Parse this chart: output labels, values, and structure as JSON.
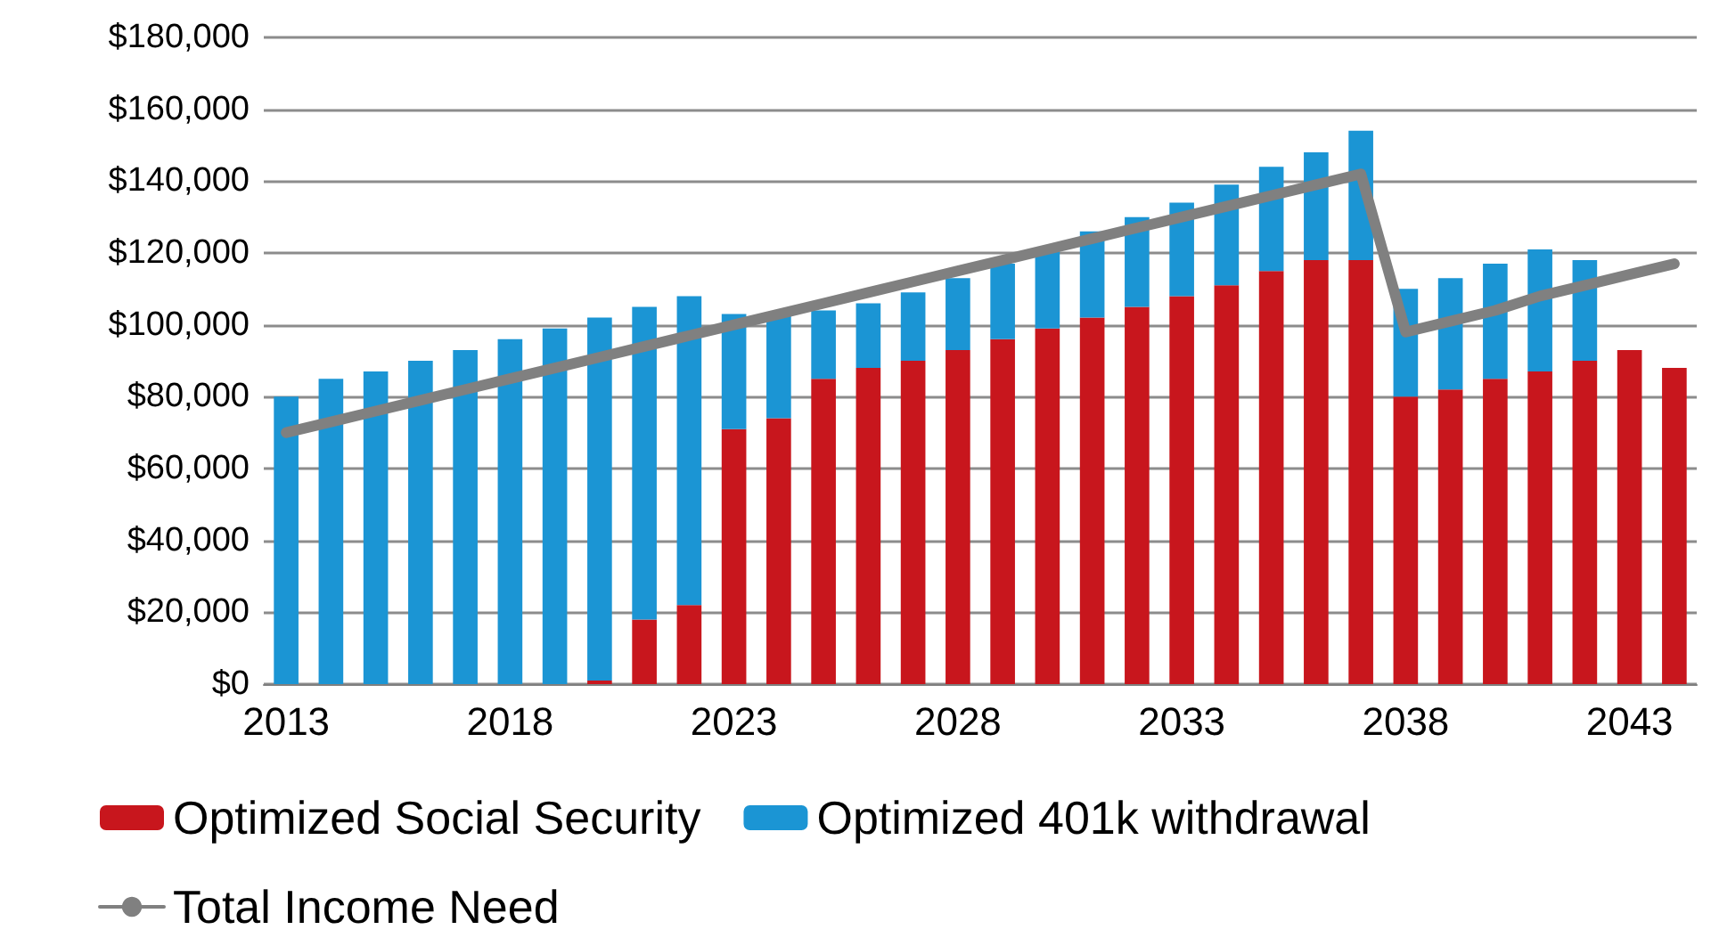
{
  "chart_data": {
    "type": "bar",
    "stacked": true,
    "grid": "y",
    "legend": "bottom",
    "categories": [
      "2013",
      null,
      null,
      null,
      null,
      "2018",
      null,
      null,
      null,
      null,
      "2023",
      null,
      null,
      null,
      null,
      "2028",
      null,
      null,
      null,
      null,
      "2033",
      null,
      null,
      null,
      null,
      "2038",
      null,
      null,
      null,
      null,
      "2043",
      null
    ],
    "ylim": [
      0,
      180000
    ],
    "yticks": [
      {
        "value": 0,
        "label": "$0"
      },
      {
        "value": 20000,
        "label": "$20,000"
      },
      {
        "value": 40000,
        "label": "$40,000"
      },
      {
        "value": 60000,
        "label": "$60,000"
      },
      {
        "value": 80000,
        "label": "$80,000"
      },
      {
        "value": 100000,
        "label": "$100,000"
      },
      {
        "value": 120000,
        "label": "$120,000"
      },
      {
        "value": 140000,
        "label": "$140,000"
      },
      {
        "value": 160000,
        "label": "$160,000"
      },
      {
        "value": 180000,
        "label": "$180,000"
      }
    ],
    "series": [
      {
        "name": "Optimized Social Security",
        "color": "#c8161d",
        "values": [
          0,
          0,
          0,
          0,
          0,
          0,
          0,
          1000,
          18000,
          22000,
          71000,
          74000,
          85000,
          88000,
          90000,
          93000,
          96000,
          99000,
          102000,
          105000,
          108000,
          111000,
          115000,
          118000,
          118000,
          80000,
          82000,
          85000,
          87000,
          90000,
          93000,
          88000
        ]
      },
      {
        "name": "Optimized 401k withdrawal",
        "color": "#1b95d4",
        "values": [
          80000,
          85000,
          87000,
          90000,
          93000,
          96000,
          99000,
          101000,
          87000,
          86000,
          32000,
          29000,
          19000,
          18000,
          19000,
          20000,
          21000,
          22000,
          24000,
          25000,
          26000,
          28000,
          29000,
          30000,
          36000,
          30000,
          31000,
          32000,
          34000,
          28000,
          null,
          null
        ]
      },
      {
        "name": "Total Income Need",
        "type": "line",
        "color": "#808080",
        "marker": "none",
        "line_style": "solid",
        "values": [
          70000,
          73000,
          76000,
          79000,
          82000,
          85000,
          88000,
          91000,
          94000,
          97000,
          100000,
          103000,
          106000,
          109000,
          112000,
          115000,
          118000,
          121000,
          124000,
          127000,
          130000,
          133000,
          136000,
          139000,
          142000,
          98000,
          101000,
          104000,
          108000,
          111000,
          114000,
          117000
        ]
      }
    ]
  }
}
